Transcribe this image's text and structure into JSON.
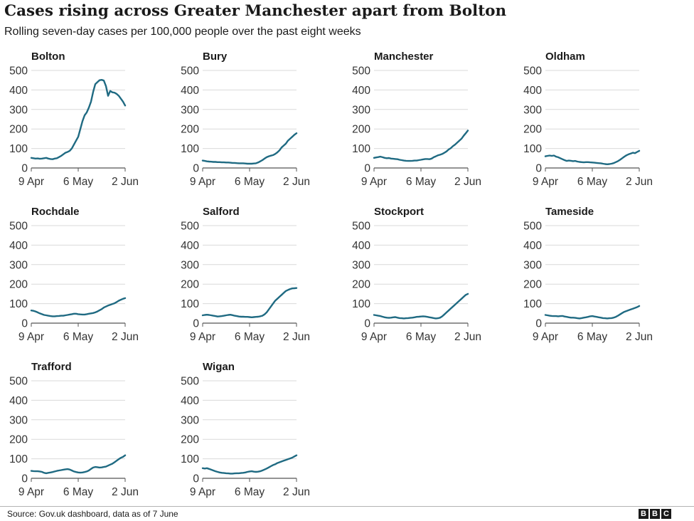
{
  "title": "Cases rising across Greater Manchester apart from Bolton",
  "subtitle": "Rolling seven-day cases per 100,000 people over the past eight weeks",
  "source": "Source: Gov.uk dashboard, data as of  7 June",
  "logo": [
    "B",
    "B",
    "C"
  ],
  "colors": {
    "line": "#1f6a82",
    "grid": "#d9d9d9",
    "axis": "#555555",
    "text": "#333333"
  },
  "chart_data": [
    {
      "type": "line",
      "title": "Bolton",
      "x_ticks": [
        "9 Apr",
        "6 May",
        "2 Jun"
      ],
      "y_ticks": [
        0,
        100,
        200,
        300,
        400,
        500
      ],
      "ylim": [
        0,
        500
      ],
      "ylabel": "",
      "xlabel": "",
      "values": [
        52,
        50,
        48,
        49,
        47,
        48,
        50,
        52,
        48,
        46,
        45,
        48,
        50,
        56,
        62,
        70,
        78,
        82,
        88,
        100,
        120,
        140,
        160,
        200,
        240,
        270,
        285,
        310,
        340,
        390,
        430,
        440,
        450,
        452,
        448,
        420,
        370,
        395,
        388,
        386,
        380,
        370,
        355,
        340,
        320
      ]
    },
    {
      "type": "line",
      "title": "Bury",
      "x_ticks": [
        "9 Apr",
        "6 May",
        "2 Jun"
      ],
      "y_ticks": [
        0,
        100,
        200,
        300,
        400,
        500
      ],
      "ylim": [
        0,
        500
      ],
      "ylabel": "",
      "xlabel": "",
      "values": [
        38,
        36,
        34,
        33,
        32,
        31,
        31,
        30,
        30,
        29,
        29,
        28,
        28,
        27,
        26,
        26,
        25,
        24,
        24,
        24,
        23,
        22,
        22,
        22,
        23,
        24,
        28,
        34,
        40,
        48,
        55,
        60,
        63,
        66,
        72,
        80,
        90,
        105,
        115,
        125,
        140,
        150,
        160,
        170,
        178
      ]
    },
    {
      "type": "line",
      "title": "Manchester",
      "x_ticks": [
        "9 Apr",
        "6 May",
        "2 Jun"
      ],
      "y_ticks": [
        0,
        100,
        200,
        300,
        400,
        500
      ],
      "ylim": [
        0,
        500
      ],
      "ylabel": "",
      "xlabel": "",
      "values": [
        52,
        54,
        56,
        58,
        55,
        52,
        50,
        51,
        48,
        47,
        46,
        45,
        42,
        40,
        38,
        37,
        36,
        36,
        37,
        38,
        38,
        40,
        42,
        44,
        46,
        46,
        45,
        48,
        55,
        60,
        65,
        68,
        72,
        78,
        85,
        95,
        102,
        112,
        120,
        130,
        140,
        150,
        165,
        178,
        192
      ]
    },
    {
      "type": "line",
      "title": "Oldham",
      "x_ticks": [
        "9 Apr",
        "6 May",
        "2 Jun"
      ],
      "y_ticks": [
        0,
        100,
        200,
        300,
        400,
        500
      ],
      "ylim": [
        0,
        500
      ],
      "ylabel": "",
      "xlabel": "",
      "values": [
        60,
        62,
        64,
        62,
        64,
        58,
        55,
        50,
        45,
        40,
        36,
        38,
        37,
        35,
        36,
        33,
        31,
        30,
        29,
        30,
        30,
        29,
        28,
        27,
        26,
        25,
        24,
        22,
        20,
        19,
        20,
        22,
        25,
        30,
        35,
        42,
        50,
        58,
        65,
        70,
        74,
        78,
        76,
        82,
        88
      ]
    },
    {
      "type": "line",
      "title": "Rochdale",
      "x_ticks": [
        "9 Apr",
        "6 May",
        "2 Jun"
      ],
      "y_ticks": [
        0,
        100,
        200,
        300,
        400,
        500
      ],
      "ylim": [
        0,
        500
      ],
      "ylabel": "",
      "xlabel": "",
      "values": [
        65,
        63,
        60,
        55,
        50,
        46,
        42,
        40,
        38,
        36,
        35,
        35,
        36,
        37,
        38,
        38,
        40,
        42,
        44,
        46,
        48,
        48,
        46,
        45,
        44,
        44,
        46,
        48,
        50,
        52,
        55,
        60,
        66,
        72,
        80,
        85,
        90,
        94,
        98,
        102,
        108,
        115,
        120,
        125,
        128
      ]
    },
    {
      "type": "line",
      "title": "Salford",
      "x_ticks": [
        "9 Apr",
        "6 May",
        "2 Jun"
      ],
      "y_ticks": [
        0,
        100,
        200,
        300,
        400,
        500
      ],
      "ylim": [
        0,
        500
      ],
      "ylabel": "",
      "xlabel": "",
      "values": [
        40,
        42,
        43,
        42,
        40,
        38,
        36,
        34,
        35,
        36,
        38,
        40,
        42,
        43,
        41,
        38,
        36,
        34,
        33,
        33,
        32,
        32,
        31,
        30,
        31,
        32,
        33,
        35,
        38,
        45,
        55,
        70,
        85,
        100,
        115,
        125,
        135,
        145,
        155,
        165,
        170,
        175,
        178,
        179,
        180
      ]
    },
    {
      "type": "line",
      "title": "Stockport",
      "x_ticks": [
        "9 Apr",
        "6 May",
        "2 Jun"
      ],
      "y_ticks": [
        0,
        100,
        200,
        300,
        400,
        500
      ],
      "ylim": [
        0,
        500
      ],
      "ylabel": "",
      "xlabel": "",
      "values": [
        42,
        40,
        38,
        36,
        33,
        30,
        28,
        27,
        28,
        30,
        31,
        28,
        26,
        25,
        24,
        25,
        26,
        27,
        28,
        30,
        32,
        33,
        34,
        35,
        34,
        32,
        30,
        28,
        26,
        24,
        25,
        28,
        35,
        45,
        55,
        65,
        75,
        85,
        95,
        105,
        115,
        125,
        135,
        145,
        150
      ]
    },
    {
      "type": "line",
      "title": "Tameside",
      "x_ticks": [
        "9 Apr",
        "6 May",
        "2 Jun"
      ],
      "y_ticks": [
        0,
        100,
        200,
        300,
        400,
        500
      ],
      "ylim": [
        0,
        500
      ],
      "ylabel": "",
      "xlabel": "",
      "values": [
        42,
        40,
        38,
        37,
        36,
        36,
        35,
        36,
        37,
        34,
        32,
        30,
        28,
        28,
        27,
        25,
        24,
        26,
        28,
        30,
        32,
        35,
        36,
        34,
        32,
        30,
        28,
        26,
        25,
        24,
        25,
        26,
        28,
        32,
        38,
        45,
        52,
        58,
        62,
        66,
        70,
        74,
        78,
        82,
        88
      ]
    },
    {
      "type": "line",
      "title": "Trafford",
      "x_ticks": [
        "9 Apr",
        "6 May",
        "2 Jun"
      ],
      "y_ticks": [
        0,
        100,
        200,
        300,
        400,
        500
      ],
      "ylim": [
        0,
        500
      ],
      "ylabel": "",
      "xlabel": "",
      "values": [
        38,
        37,
        36,
        36,
        35,
        33,
        28,
        26,
        28,
        30,
        32,
        35,
        38,
        40,
        42,
        44,
        46,
        47,
        45,
        40,
        35,
        32,
        30,
        29,
        30,
        32,
        35,
        40,
        48,
        55,
        58,
        57,
        55,
        56,
        58,
        60,
        65,
        70,
        75,
        82,
        90,
        98,
        105,
        110,
        118
      ]
    },
    {
      "type": "line",
      "title": "Wigan",
      "x_ticks": [
        "9 Apr",
        "6 May",
        "2 Jun"
      ],
      "y_ticks": [
        0,
        100,
        200,
        300,
        400,
        500
      ],
      "ylim": [
        0,
        500
      ],
      "ylabel": "",
      "xlabel": "",
      "values": [
        52,
        50,
        52,
        48,
        44,
        40,
        36,
        33,
        30,
        28,
        27,
        26,
        25,
        24,
        24,
        25,
        26,
        26,
        27,
        28,
        30,
        33,
        35,
        36,
        34,
        33,
        34,
        36,
        40,
        45,
        50,
        56,
        62,
        68,
        72,
        78,
        82,
        86,
        90,
        94,
        98,
        102,
        106,
        112,
        118
      ]
    }
  ]
}
